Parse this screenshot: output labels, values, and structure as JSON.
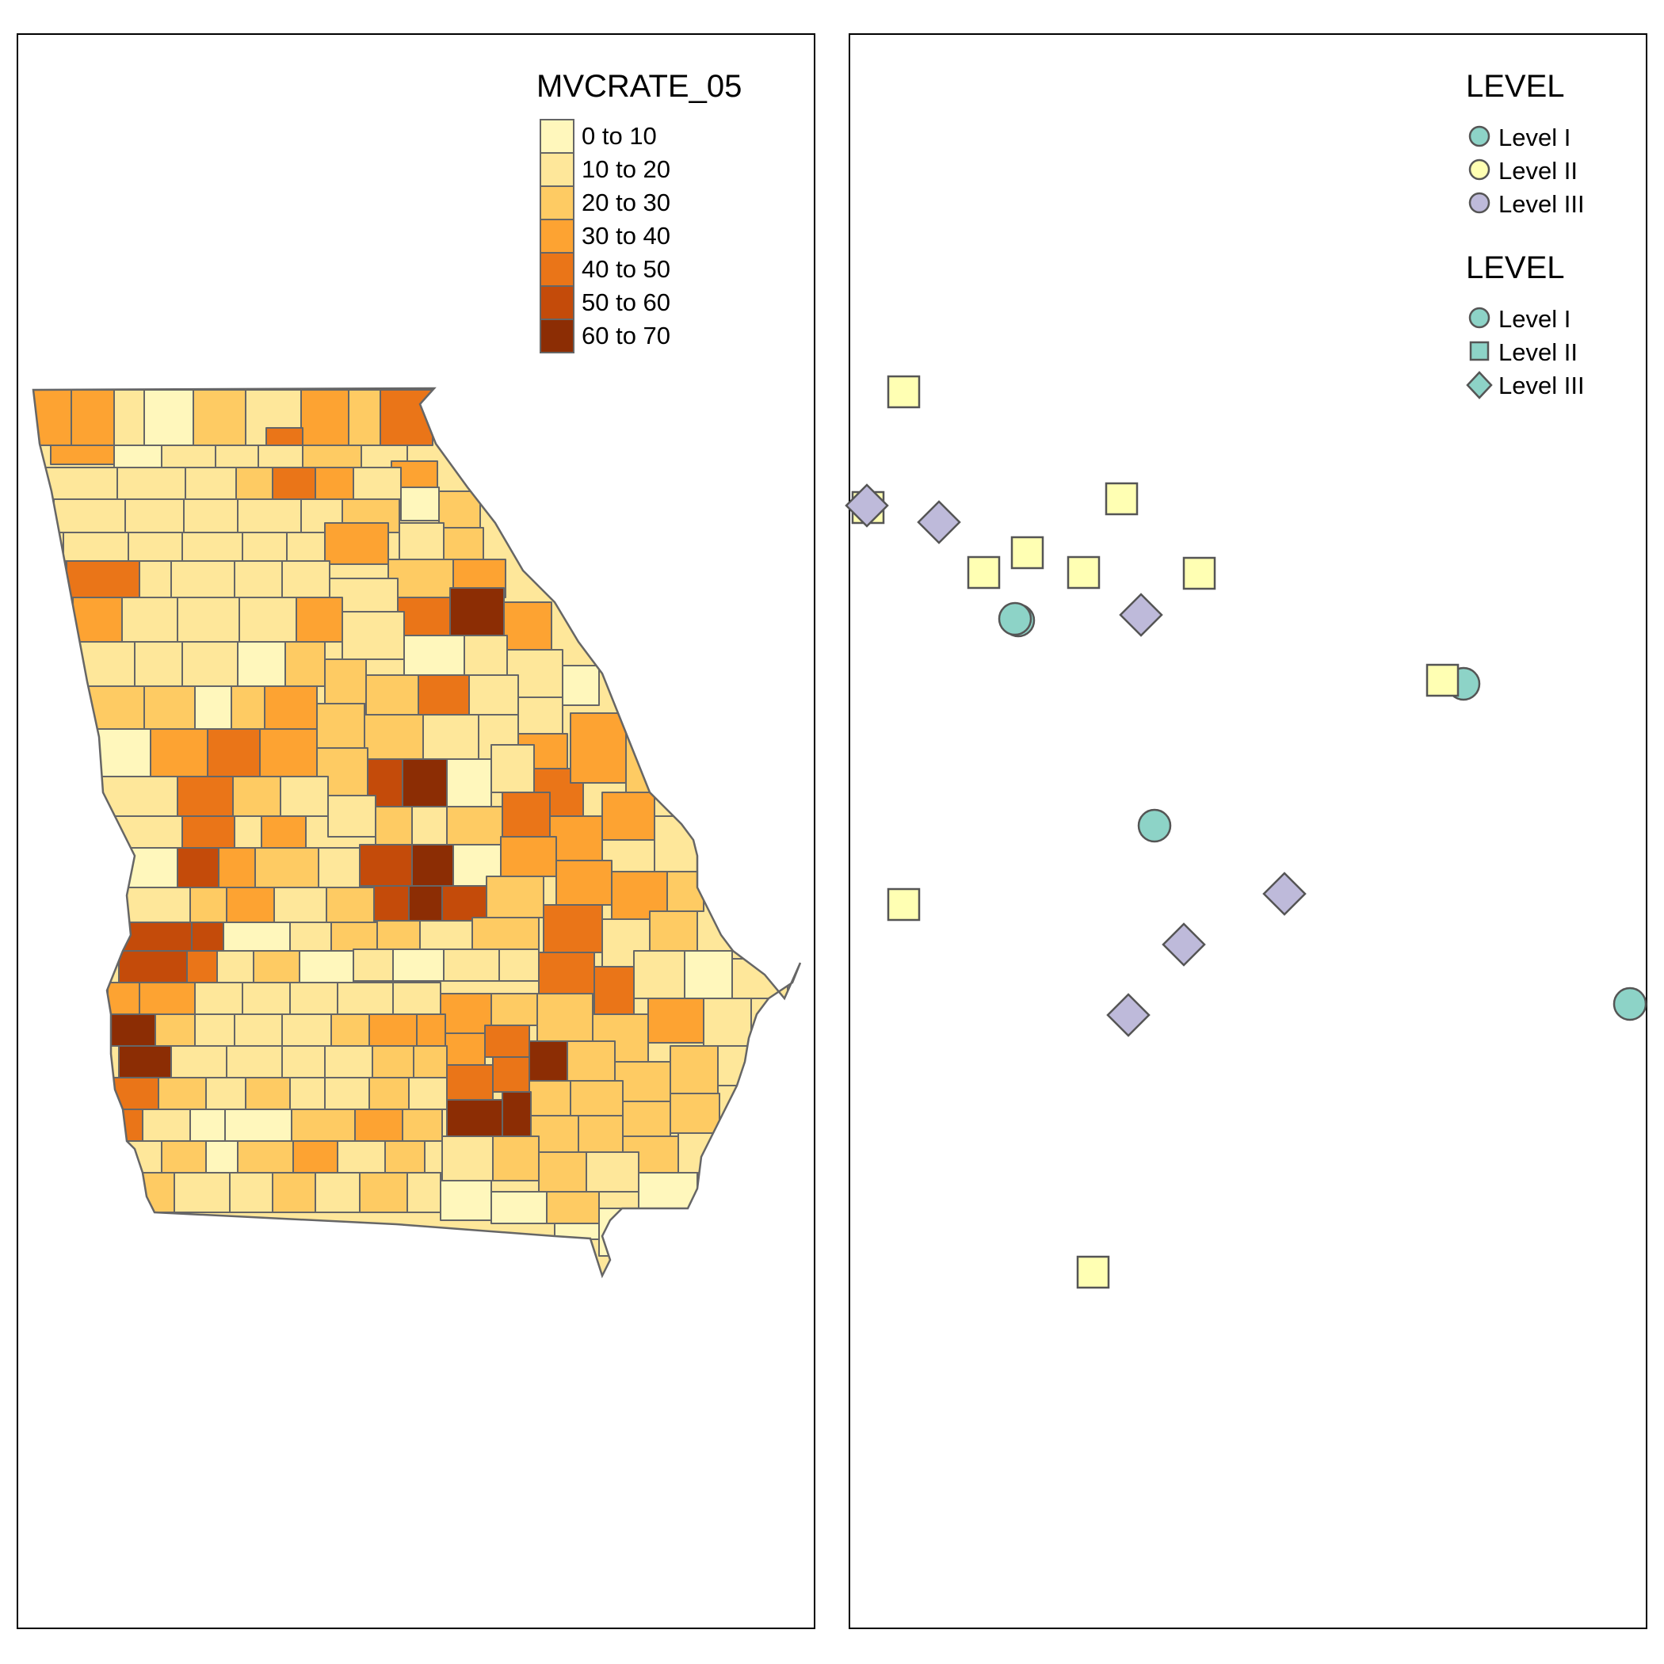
{
  "left_panel": {
    "legend": {
      "title": "MVCRATE_05",
      "classes": [
        {
          "label": "0 to 10",
          "color": "#FFF7BC"
        },
        {
          "label": "10 to 20",
          "color": "#FEE79A"
        },
        {
          "label": "20 to 30",
          "color": "#FECB63"
        },
        {
          "label": "30 to 40",
          "color": "#FDA332"
        },
        {
          "label": "40 to 50",
          "color": "#EA7518"
        },
        {
          "label": "50 to 60",
          "color": "#C44B0A"
        },
        {
          "label": "60 to 70",
          "color": "#8C2D04"
        }
      ]
    },
    "county_border_color": "#666666"
  },
  "right_panel": {
    "legend_fill": {
      "title": "LEVEL",
      "items": [
        {
          "label": "Level I",
          "shape": "circle",
          "color": "#8DD3C7"
        },
        {
          "label": "Level II",
          "shape": "circle",
          "color": "#FFFFB3"
        },
        {
          "label": "Level III",
          "shape": "circle",
          "color": "#BEBADA"
        }
      ]
    },
    "legend_shape": {
      "title": "LEVEL",
      "items": [
        {
          "label": "Level I",
          "shape": "circle",
          "color": "#8DD3C7"
        },
        {
          "label": "Level II",
          "shape": "square",
          "color": "#8DD3C7"
        },
        {
          "label": "Level III",
          "shape": "diamond",
          "color": "#8DD3C7"
        }
      ]
    }
  }
}
